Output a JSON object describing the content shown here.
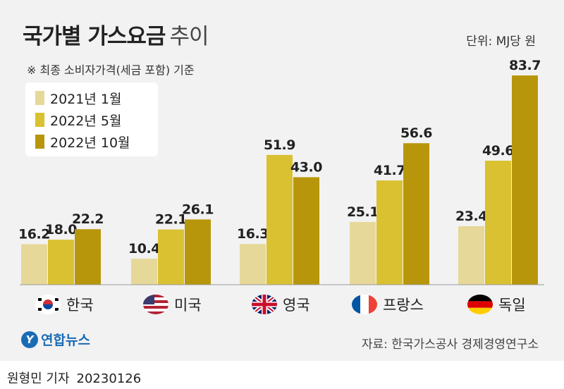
{
  "title": "국가별 가스요금",
  "title_suffix": "추이",
  "subtitle": "※ 최종 소비자가격(세금 포함) 기준",
  "unit": "단위: MJ당 원",
  "source": "자료: 한국가스공사 경제경영연구소",
  "logo_text": "연합뉴스",
  "byline": "원형민 기자",
  "date": "20230126",
  "colors": {
    "2021": "#e6d898",
    "2022_05": "#d9c131",
    "2022_10": "#b8960b",
    "panel_bg": "#f2f2f2",
    "logo": "#1a6bb5"
  },
  "chart_data": {
    "type": "bar",
    "categories": [
      "한국",
      "미국",
      "영국",
      "프랑스",
      "독일"
    ],
    "category_flags": [
      "korea-flag-icon",
      "usa-flag-icon",
      "uk-flag-icon",
      "france-flag-icon",
      "germany-flag-icon"
    ],
    "series": [
      {
        "name": "2021년 1월",
        "color": "#e6d898",
        "values": [
          16.2,
          10.4,
          16.3,
          25.1,
          23.4
        ]
      },
      {
        "name": "2022년 5월",
        "color": "#d9c131",
        "values": [
          18.0,
          22.1,
          51.9,
          41.7,
          49.6
        ]
      },
      {
        "name": "2022년 10월",
        "color": "#b8960b",
        "values": [
          22.2,
          26.1,
          43.0,
          56.6,
          83.7
        ]
      }
    ],
    "value_labels": [
      [
        "16.2",
        "10.4",
        "16.3",
        "25.1",
        "23.4"
      ],
      [
        "18.0",
        "22.1",
        "51.9",
        "41.7",
        "49.6"
      ],
      [
        "22.2",
        "26.1",
        "43.0",
        "56.6",
        "83.7"
      ]
    ],
    "ylim": [
      0,
      90
    ],
    "legend_position": "top-left",
    "grid": false
  }
}
